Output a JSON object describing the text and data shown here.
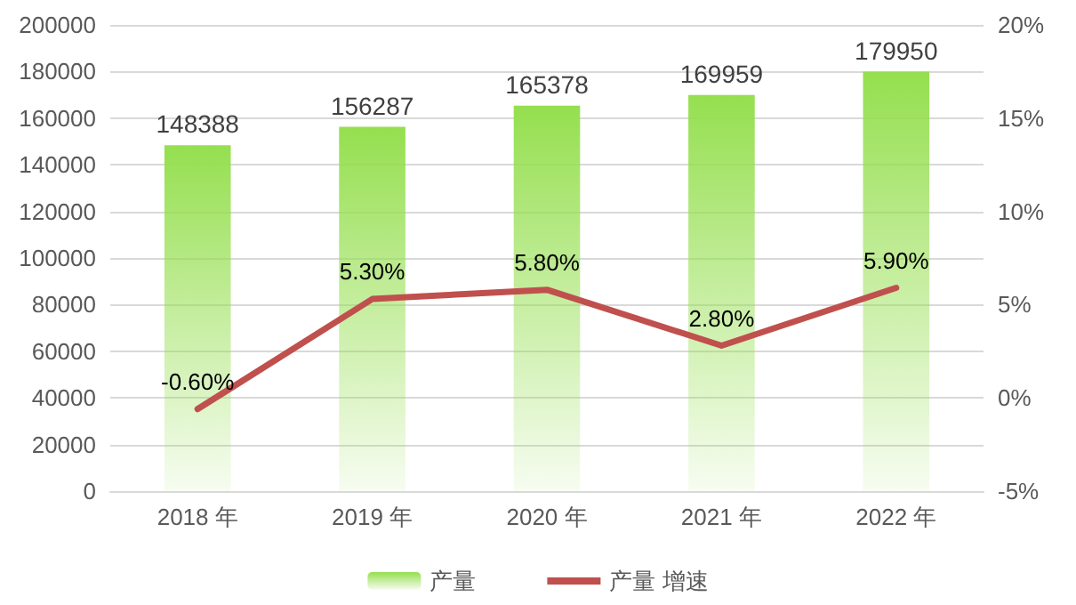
{
  "chart_data": {
    "type": "bar",
    "categories": [
      "2018 年",
      "2019 年",
      "2020 年",
      "2021 年",
      "2022 年"
    ],
    "series": [
      {
        "name": "产量",
        "color": "#95df4f",
        "values": [
          148388,
          156287,
          165378,
          169959,
          179950
        ],
        "value_labels": [
          "148388",
          "156287",
          "165378",
          "169959",
          "179950"
        ]
      },
      {
        "name": "产量 增速",
        "type": "line",
        "axis": "y2",
        "color": "#c0504d",
        "values": [
          -0.6,
          5.3,
          5.8,
          2.8,
          5.9
        ],
        "value_labels": [
          "-0.60%",
          "5.30%",
          "5.80%",
          "2.80%",
          "5.90%"
        ]
      }
    ],
    "ylim": [
      0,
      200000
    ],
    "yticks": [
      0,
      20000,
      40000,
      60000,
      80000,
      100000,
      120000,
      140000,
      160000,
      180000,
      200000
    ],
    "y2lim": [
      -5,
      20
    ],
    "y2ticks": [
      {
        "value": -5,
        "label": "-5%"
      },
      {
        "value": 0,
        "label": "0%"
      },
      {
        "value": 5,
        "label": "5%"
      },
      {
        "value": 10,
        "label": "10%"
      },
      {
        "value": 15,
        "label": "15%"
      },
      {
        "value": 20,
        "label": "20%"
      }
    ],
    "grid": "y",
    "legend": "bottom",
    "marker": "none",
    "line_style": "solid"
  }
}
